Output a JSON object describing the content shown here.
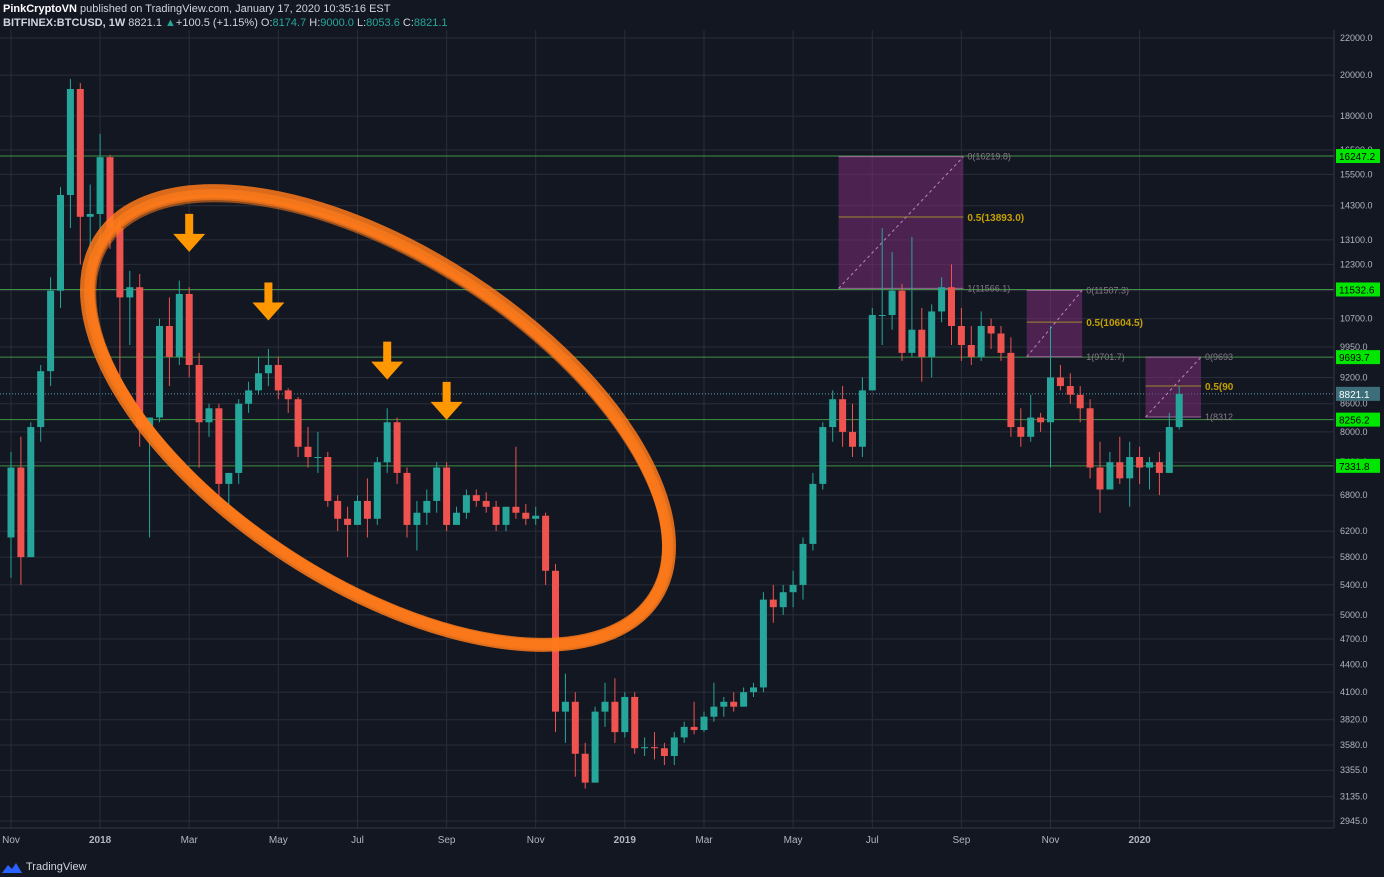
{
  "header": {
    "author": "PinkCryptoVN",
    "published_text": "published on TradingView.com, January 17, 2020 10:35:16 EST",
    "symbol": "BITFINEX:BTCUSD, 1W",
    "last": "8821.1",
    "change_arrow": "▲",
    "change": "+100.5 (+1.15%)",
    "o_label": "O:",
    "o_value": "8174.7",
    "h_label": "H:",
    "h_value": "9000.0",
    "l_label": "L:",
    "l_value": "8053.6",
    "c_label": "C:",
    "c_value": "8821.1"
  },
  "footer": {
    "brand": "TradingView"
  },
  "colors": {
    "background": "#131722",
    "up": "#26a69a",
    "down": "#ef5350",
    "grid": "#2a2e39",
    "level_line": "#4caf50",
    "level_label_bg": "#00e600",
    "fib_box": "#7b2c77",
    "fib_text": "#c4a000",
    "arrow": "#ff9800",
    "ellipse": "#ff7a1a"
  },
  "chart_data": {
    "type": "candlestick",
    "interval": "1W",
    "scale": "log",
    "price_axis": {
      "side": "right",
      "ticks": [
        22000,
        20000,
        18000,
        16500,
        15500,
        14300,
        13100,
        12300,
        11500,
        10700,
        9950,
        9200,
        8600,
        8000,
        7400,
        6800,
        6200,
        5800,
        5400,
        5000,
        4700,
        4400,
        4100,
        3820,
        3580,
        3355,
        3135,
        2945
      ],
      "tick_labels": [
        "22000.0",
        "20000.0",
        "18000.0",
        "16500.0",
        "15500.0",
        "14300.0",
        "13100.0",
        "12300.0",
        "11500.0",
        "10700.0",
        "9950.0",
        "9200.0",
        "8600.0",
        "8000.0",
        "7400.0",
        "6800.0",
        "6200.0",
        "5800.0",
        "5400.0",
        "5000.0",
        "4700.0",
        "4400.0",
        "4100.0",
        "3820.0",
        "3580.0",
        "3355.0",
        "3135.0",
        "2945.0"
      ]
    },
    "time_axis": {
      "labels": [
        {
          "text": "Nov",
          "week": 0
        },
        {
          "text": "2018",
          "week": 9
        },
        {
          "text": "Mar",
          "week": 18
        },
        {
          "text": "May",
          "week": 27
        },
        {
          "text": "Jul",
          "week": 35
        },
        {
          "text": "Sep",
          "week": 44
        },
        {
          "text": "Nov",
          "week": 53
        },
        {
          "text": "2019",
          "week": 62
        },
        {
          "text": "Mar",
          "week": 70
        },
        {
          "text": "May",
          "week": 79
        },
        {
          "text": "Jul",
          "week": 87
        },
        {
          "text": "Sep",
          "week": 96
        },
        {
          "text": "Nov",
          "week": 105
        },
        {
          "text": "2020",
          "week": 114
        }
      ]
    },
    "candles": [
      {
        "w": 0,
        "o": 6100,
        "h": 7600,
        "c": 7300,
        "l": 5500
      },
      {
        "w": 1,
        "o": 7300,
        "h": 7900,
        "c": 5800,
        "l": 5400
      },
      {
        "w": 2,
        "o": 5800,
        "h": 8200,
        "c": 8100,
        "l": 5800
      },
      {
        "w": 3,
        "o": 8100,
        "h": 9500,
        "c": 9350,
        "l": 7800
      },
      {
        "w": 4,
        "o": 9350,
        "h": 11900,
        "c": 11500,
        "l": 9000
      },
      {
        "w": 5,
        "o": 11500,
        "h": 15000,
        "c": 14700,
        "l": 11000
      },
      {
        "w": 6,
        "o": 14700,
        "h": 19800,
        "c": 19300,
        "l": 13500
      },
      {
        "w": 7,
        "o": 19300,
        "h": 19600,
        "c": 13900,
        "l": 12300
      },
      {
        "w": 8,
        "o": 13900,
        "h": 15100,
        "c": 14000,
        "l": 11800
      },
      {
        "w": 9,
        "o": 14000,
        "h": 17200,
        "c": 16200,
        "l": 12800
      },
      {
        "w": 10,
        "o": 16200,
        "h": 16300,
        "c": 13500,
        "l": 12800
      },
      {
        "w": 11,
        "o": 13500,
        "h": 13800,
        "c": 11300,
        "l": 9200
      },
      {
        "w": 12,
        "o": 11300,
        "h": 12100,
        "c": 11600,
        "l": 10000
      },
      {
        "w": 13,
        "o": 11600,
        "h": 12000,
        "c": 8100,
        "l": 7700
      },
      {
        "w": 14,
        "o": 8100,
        "h": 8300,
        "c": 8300,
        "l": 6100
      },
      {
        "w": 15,
        "o": 8300,
        "h": 10700,
        "c": 10500,
        "l": 8200
      },
      {
        "w": 16,
        "o": 10500,
        "h": 11300,
        "c": 9700,
        "l": 9000
      },
      {
        "w": 17,
        "o": 9700,
        "h": 11800,
        "c": 11400,
        "l": 9500
      },
      {
        "w": 18,
        "o": 11400,
        "h": 11600,
        "c": 9500,
        "l": 9200
      },
      {
        "w": 19,
        "o": 9500,
        "h": 9800,
        "c": 8200,
        "l": 7300
      },
      {
        "w": 20,
        "o": 8200,
        "h": 8600,
        "c": 8500,
        "l": 7900
      },
      {
        "w": 21,
        "o": 8500,
        "h": 8600,
        "c": 7000,
        "l": 6600
      },
      {
        "w": 22,
        "o": 7000,
        "h": 7200,
        "c": 7200,
        "l": 6600
      },
      {
        "w": 23,
        "o": 7200,
        "h": 8700,
        "c": 8600,
        "l": 7000
      },
      {
        "w": 24,
        "o": 8600,
        "h": 9100,
        "c": 8900,
        "l": 8400
      },
      {
        "w": 25,
        "o": 8900,
        "h": 9700,
        "c": 9300,
        "l": 8800
      },
      {
        "w": 26,
        "o": 9300,
        "h": 9900,
        "c": 9500,
        "l": 9000
      },
      {
        "w": 27,
        "o": 9500,
        "h": 9700,
        "c": 8900,
        "l": 8700
      },
      {
        "w": 28,
        "o": 8900,
        "h": 8950,
        "c": 8700,
        "l": 8400
      },
      {
        "w": 29,
        "o": 8700,
        "h": 8750,
        "c": 7700,
        "l": 7500
      },
      {
        "w": 30,
        "o": 7700,
        "h": 8100,
        "c": 7500,
        "l": 7300
      },
      {
        "w": 31,
        "o": 7500,
        "h": 8000,
        "c": 7500,
        "l": 7200
      },
      {
        "w": 32,
        "o": 7500,
        "h": 7600,
        "c": 6700,
        "l": 6600
      },
      {
        "w": 33,
        "o": 6700,
        "h": 6800,
        "c": 6400,
        "l": 6200
      },
      {
        "w": 34,
        "o": 6400,
        "h": 6600,
        "c": 6300,
        "l": 5800
      },
      {
        "w": 35,
        "o": 6300,
        "h": 6800,
        "c": 6700,
        "l": 6300
      },
      {
        "w": 36,
        "o": 6700,
        "h": 7100,
        "c": 6400,
        "l": 6100
      },
      {
        "w": 37,
        "o": 6400,
        "h": 7500,
        "c": 7400,
        "l": 6300
      },
      {
        "w": 38,
        "o": 7400,
        "h": 8500,
        "c": 8200,
        "l": 7200
      },
      {
        "w": 39,
        "o": 8200,
        "h": 8300,
        "c": 7200,
        "l": 7000
      },
      {
        "w": 40,
        "o": 7200,
        "h": 7300,
        "c": 6300,
        "l": 6100
      },
      {
        "w": 41,
        "o": 6300,
        "h": 6700,
        "c": 6500,
        "l": 5900
      },
      {
        "w": 42,
        "o": 6500,
        "h": 6900,
        "c": 6700,
        "l": 6300
      },
      {
        "w": 43,
        "o": 6700,
        "h": 7400,
        "c": 7300,
        "l": 6500
      },
      {
        "w": 44,
        "o": 7300,
        "h": 7400,
        "c": 6300,
        "l": 6200
      },
      {
        "w": 45,
        "o": 6300,
        "h": 6600,
        "c": 6500,
        "l": 6300
      },
      {
        "w": 46,
        "o": 6500,
        "h": 6900,
        "c": 6800,
        "l": 6400
      },
      {
        "w": 47,
        "o": 6800,
        "h": 6900,
        "c": 6700,
        "l": 6600
      },
      {
        "w": 48,
        "o": 6700,
        "h": 6850,
        "c": 6600,
        "l": 6500
      },
      {
        "w": 49,
        "o": 6600,
        "h": 6700,
        "c": 6300,
        "l": 6200
      },
      {
        "w": 50,
        "o": 6300,
        "h": 6600,
        "c": 6600,
        "l": 6200
      },
      {
        "w": 51,
        "o": 6600,
        "h": 7700,
        "c": 6500,
        "l": 6400
      },
      {
        "w": 52,
        "o": 6500,
        "h": 6650,
        "c": 6400,
        "l": 6300
      },
      {
        "w": 53,
        "o": 6400,
        "h": 6600,
        "c": 6450,
        "l": 6300
      },
      {
        "w": 54,
        "o": 6450,
        "h": 6500,
        "c": 5600,
        "l": 5400
      },
      {
        "w": 55,
        "o": 5600,
        "h": 5700,
        "c": 3900,
        "l": 3700
      },
      {
        "w": 56,
        "o": 3900,
        "h": 4300,
        "c": 4000,
        "l": 3600
      },
      {
        "w": 57,
        "o": 4000,
        "h": 4100,
        "c": 3500,
        "l": 3300
      },
      {
        "w": 58,
        "o": 3500,
        "h": 3600,
        "c": 3250,
        "l": 3200
      },
      {
        "w": 59,
        "o": 3250,
        "h": 3950,
        "c": 3900,
        "l": 3250
      },
      {
        "w": 60,
        "o": 3900,
        "h": 4200,
        "c": 4000,
        "l": 3750
      },
      {
        "w": 61,
        "o": 4000,
        "h": 4250,
        "c": 3700,
        "l": 3600
      },
      {
        "w": 62,
        "o": 3700,
        "h": 4100,
        "c": 4050,
        "l": 3650
      },
      {
        "w": 63,
        "o": 4050,
        "h": 4100,
        "c": 3550,
        "l": 3500
      },
      {
        "w": 64,
        "o": 3550,
        "h": 3650,
        "c": 3560,
        "l": 3480
      },
      {
        "w": 65,
        "o": 3560,
        "h": 3700,
        "c": 3550,
        "l": 3450
      },
      {
        "w": 66,
        "o": 3550,
        "h": 3600,
        "c": 3480,
        "l": 3400
      },
      {
        "w": 67,
        "o": 3480,
        "h": 3700,
        "c": 3650,
        "l": 3400
      },
      {
        "w": 68,
        "o": 3650,
        "h": 3800,
        "c": 3750,
        "l": 3600
      },
      {
        "w": 69,
        "o": 3750,
        "h": 4000,
        "c": 3720,
        "l": 3680
      },
      {
        "w": 70,
        "o": 3720,
        "h": 3900,
        "c": 3850,
        "l": 3700
      },
      {
        "w": 71,
        "o": 3850,
        "h": 4200,
        "c": 3950,
        "l": 3800
      },
      {
        "w": 72,
        "o": 3950,
        "h": 4050,
        "c": 4000,
        "l": 3850
      },
      {
        "w": 73,
        "o": 4000,
        "h": 4100,
        "c": 3950,
        "l": 3900
      },
      {
        "w": 74,
        "o": 3950,
        "h": 4150,
        "c": 4100,
        "l": 3950
      },
      {
        "w": 75,
        "o": 4100,
        "h": 4200,
        "c": 4150,
        "l": 4050
      },
      {
        "w": 76,
        "o": 4150,
        "h": 5300,
        "c": 5200,
        "l": 4100
      },
      {
        "w": 77,
        "o": 5200,
        "h": 5400,
        "c": 5100,
        "l": 4900
      },
      {
        "w": 78,
        "o": 5100,
        "h": 5400,
        "c": 5300,
        "l": 5000
      },
      {
        "w": 79,
        "o": 5300,
        "h": 5600,
        "c": 5400,
        "l": 5100
      },
      {
        "w": 80,
        "o": 5400,
        "h": 6100,
        "c": 6000,
        "l": 5200
      },
      {
        "w": 81,
        "o": 6000,
        "h": 7200,
        "c": 7000,
        "l": 5900
      },
      {
        "w": 82,
        "o": 7000,
        "h": 8200,
        "c": 8100,
        "l": 6900
      },
      {
        "w": 83,
        "o": 8100,
        "h": 8900,
        "c": 8700,
        "l": 7800
      },
      {
        "w": 84,
        "o": 8700,
        "h": 9000,
        "c": 8000,
        "l": 7700
      },
      {
        "w": 85,
        "o": 8000,
        "h": 8600,
        "c": 7700,
        "l": 7500
      },
      {
        "w": 86,
        "o": 7700,
        "h": 9200,
        "c": 8900,
        "l": 7500
      },
      {
        "w": 87,
        "o": 8900,
        "h": 11000,
        "c": 10800,
        "l": 8900
      },
      {
        "w": 88,
        "o": 10800,
        "h": 13500,
        "c": 10800,
        "l": 10000
      },
      {
        "w": 89,
        "o": 10800,
        "h": 12700,
        "c": 11500,
        "l": 10400
      },
      {
        "w": 90,
        "o": 11500,
        "h": 11700,
        "c": 9800,
        "l": 9600
      },
      {
        "w": 91,
        "o": 9800,
        "h": 13200,
        "c": 10400,
        "l": 9700
      },
      {
        "w": 92,
        "o": 10400,
        "h": 11000,
        "c": 9700,
        "l": 9100
      },
      {
        "w": 93,
        "o": 9700,
        "h": 11100,
        "c": 10900,
        "l": 9200
      },
      {
        "w": 94,
        "o": 10900,
        "h": 11900,
        "c": 11600,
        "l": 10600
      },
      {
        "w": 95,
        "o": 11600,
        "h": 12300,
        "c": 10500,
        "l": 10000
      },
      {
        "w": 96,
        "o": 10500,
        "h": 11000,
        "c": 10000,
        "l": 9600
      },
      {
        "w": 97,
        "o": 10000,
        "h": 10500,
        "c": 9700,
        "l": 9500
      },
      {
        "w": 98,
        "o": 9700,
        "h": 10900,
        "c": 10500,
        "l": 9600
      },
      {
        "w": 99,
        "o": 10500,
        "h": 10700,
        "c": 10300,
        "l": 9900
      },
      {
        "w": 100,
        "o": 10300,
        "h": 10500,
        "c": 9800,
        "l": 9600
      },
      {
        "w": 101,
        "o": 9800,
        "h": 10200,
        "c": 8100,
        "l": 7900
      },
      {
        "w": 102,
        "o": 8100,
        "h": 8500,
        "c": 7900,
        "l": 7700
      },
      {
        "w": 103,
        "o": 7900,
        "h": 8800,
        "c": 8300,
        "l": 7800
      },
      {
        "w": 104,
        "o": 8300,
        "h": 8400,
        "c": 8200,
        "l": 8000
      },
      {
        "w": 105,
        "o": 8200,
        "h": 10500,
        "c": 9200,
        "l": 7300
      },
      {
        "w": 106,
        "o": 9200,
        "h": 9500,
        "c": 9000,
        "l": 8900
      },
      {
        "w": 107,
        "o": 9000,
        "h": 9300,
        "c": 8800,
        "l": 8600
      },
      {
        "w": 108,
        "o": 8800,
        "h": 9000,
        "c": 8500,
        "l": 8200
      },
      {
        "w": 109,
        "o": 8500,
        "h": 8700,
        "c": 7300,
        "l": 7100
      },
      {
        "w": 110,
        "o": 7300,
        "h": 7800,
        "c": 6900,
        "l": 6500
      },
      {
        "w": 111,
        "o": 6900,
        "h": 7600,
        "c": 7400,
        "l": 6900
      },
      {
        "w": 112,
        "o": 7400,
        "h": 7900,
        "c": 7100,
        "l": 7000
      },
      {
        "w": 113,
        "o": 7100,
        "h": 7800,
        "c": 7500,
        "l": 6600
      },
      {
        "w": 114,
        "o": 7500,
        "h": 7700,
        "c": 7300,
        "l": 7000
      },
      {
        "w": 115,
        "o": 7300,
        "h": 7500,
        "c": 7400,
        "l": 6900
      },
      {
        "w": 116,
        "o": 7400,
        "h": 7600,
        "c": 7200,
        "l": 6800
      },
      {
        "w": 117,
        "o": 7200,
        "h": 8400,
        "c": 8100,
        "l": 7200
      },
      {
        "w": 118,
        "o": 8100,
        "h": 9000,
        "c": 8821,
        "l": 8050
      }
    ],
    "horizontal_levels": [
      {
        "price": 16247.2,
        "label": "16247.2"
      },
      {
        "price": 11532.6,
        "label": "11532.6"
      },
      {
        "price": 9693.7,
        "label": "9693.7"
      },
      {
        "price": 8256.2,
        "label": "8256.2"
      },
      {
        "price": 7331.8,
        "label": "7331.8"
      }
    ],
    "last_price_label": "8821.1",
    "fib_boxes": [
      {
        "w_start": 84,
        "w_end": 96,
        "top": 16219.8,
        "bottom": 11566.1,
        "mid": 13893.0,
        "top_label": "0(16219.8)",
        "mid_label": "0.5(13893.0)",
        "bottom_label": "1(11566.1)"
      },
      {
        "w_start": 103,
        "w_end": 108,
        "top": 11507.3,
        "bottom": 9701.7,
        "mid": 10604.5,
        "top_label": "0(11507.3)",
        "mid_label": "0.5(10604.5)",
        "bottom_label": "1(9701.7)"
      },
      {
        "w_start": 115,
        "w_end": 120,
        "top": 9693,
        "bottom": 8312,
        "mid": 9000,
        "top_label": "0(9693",
        "mid_label": "0.5(90",
        "bottom_label": "1(8312"
      }
    ],
    "arrows": [
      {
        "w": 18,
        "price": 12700
      },
      {
        "w": 26,
        "price": 10650
      },
      {
        "w": 38,
        "price": 9150
      },
      {
        "w": 44,
        "price": 8250
      }
    ],
    "ellipse": {
      "center_w": 31,
      "center_price": 8500
    }
  }
}
